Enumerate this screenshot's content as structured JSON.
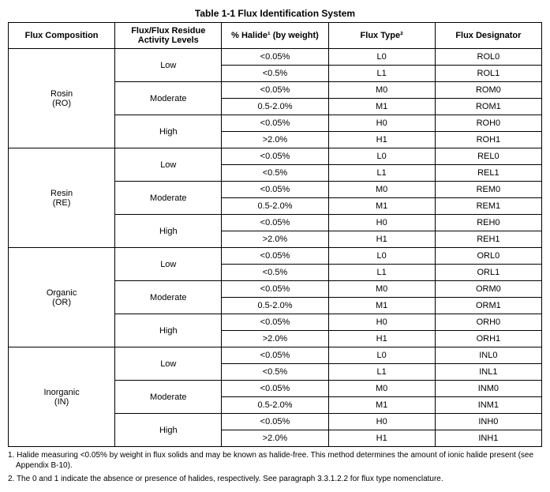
{
  "title": "Table 1-1    Flux Identification System",
  "headers": {
    "c1": "Flux Composition",
    "c2": "Flux/Flux Residue Activity Levels",
    "c3": "% Halide¹ (by weight)",
    "c4": "Flux Type²",
    "c5": "Flux Designator"
  },
  "groups": [
    {
      "composition_line1": "Rosin",
      "composition_line2": "(RO)",
      "levels": [
        {
          "level": "Low",
          "rows": [
            {
              "halide": "<0.05%",
              "type": "L0",
              "des": "ROL0"
            },
            {
              "halide": "<0.5%",
              "type": "L1",
              "des": "ROL1"
            }
          ]
        },
        {
          "level": "Moderate",
          "rows": [
            {
              "halide": "<0.05%",
              "type": "M0",
              "des": "ROM0"
            },
            {
              "halide": "0.5-2.0%",
              "type": "M1",
              "des": "ROM1"
            }
          ]
        },
        {
          "level": "High",
          "rows": [
            {
              "halide": "<0.05%",
              "type": "H0",
              "des": "ROH0"
            },
            {
              "halide": ">2.0%",
              "type": "H1",
              "des": "ROH1"
            }
          ]
        }
      ]
    },
    {
      "composition_line1": "Resin",
      "composition_line2": "(RE)",
      "levels": [
        {
          "level": "Low",
          "rows": [
            {
              "halide": "<0.05%",
              "type": "L0",
              "des": "REL0"
            },
            {
              "halide": "<0.5%",
              "type": "L1",
              "des": "REL1"
            }
          ]
        },
        {
          "level": "Moderate",
          "rows": [
            {
              "halide": "<0.05%",
              "type": "M0",
              "des": "REM0"
            },
            {
              "halide": "0.5-2.0%",
              "type": "M1",
              "des": "REM1"
            }
          ]
        },
        {
          "level": "High",
          "rows": [
            {
              "halide": "<0.05%",
              "type": "H0",
              "des": "REH0"
            },
            {
              "halide": ">2.0%",
              "type": "H1",
              "des": "REH1"
            }
          ]
        }
      ]
    },
    {
      "composition_line1": "Organic",
      "composition_line2": "(OR)",
      "levels": [
        {
          "level": "Low",
          "rows": [
            {
              "halide": "<0.05%",
              "type": "L0",
              "des": "ORL0"
            },
            {
              "halide": "<0.5%",
              "type": "L1",
              "des": "ORL1"
            }
          ]
        },
        {
          "level": "Moderate",
          "rows": [
            {
              "halide": "<0.05%",
              "type": "M0",
              "des": "ORM0"
            },
            {
              "halide": "0.5-2.0%",
              "type": "M1",
              "des": "ORM1"
            }
          ]
        },
        {
          "level": "High",
          "rows": [
            {
              "halide": "<0.05%",
              "type": "H0",
              "des": "ORH0"
            },
            {
              "halide": ">2.0%",
              "type": "H1",
              "des": "ORH1"
            }
          ]
        }
      ]
    },
    {
      "composition_line1": "Inorganic",
      "composition_line2": "(IN)",
      "levels": [
        {
          "level": "Low",
          "rows": [
            {
              "halide": "<0.05%",
              "type": "L0",
              "des": "INL0"
            },
            {
              "halide": "<0.5%",
              "type": "L1",
              "des": "INL1"
            }
          ]
        },
        {
          "level": "Moderate",
          "rows": [
            {
              "halide": "<0.05%",
              "type": "M0",
              "des": "INM0"
            },
            {
              "halide": "0.5-2.0%",
              "type": "M1",
              "des": "INM1"
            }
          ]
        },
        {
          "level": "High",
          "rows": [
            {
              "halide": "<0.05%",
              "type": "H0",
              "des": "INH0"
            },
            {
              "halide": ">2.0%",
              "type": "H1",
              "des": "INH1"
            }
          ]
        }
      ]
    }
  ],
  "footnotes": {
    "f1": "1. Halide measuring <0.05% by weight in flux solids and may be known as halide-free. This method determines the amount of ionic halide present (see Appendix B-10).",
    "f2": "2. The 0 and 1 indicate the absence or presence of halides, respectively. See paragraph 3.3.1.2.2 for flux type nomenclature."
  }
}
